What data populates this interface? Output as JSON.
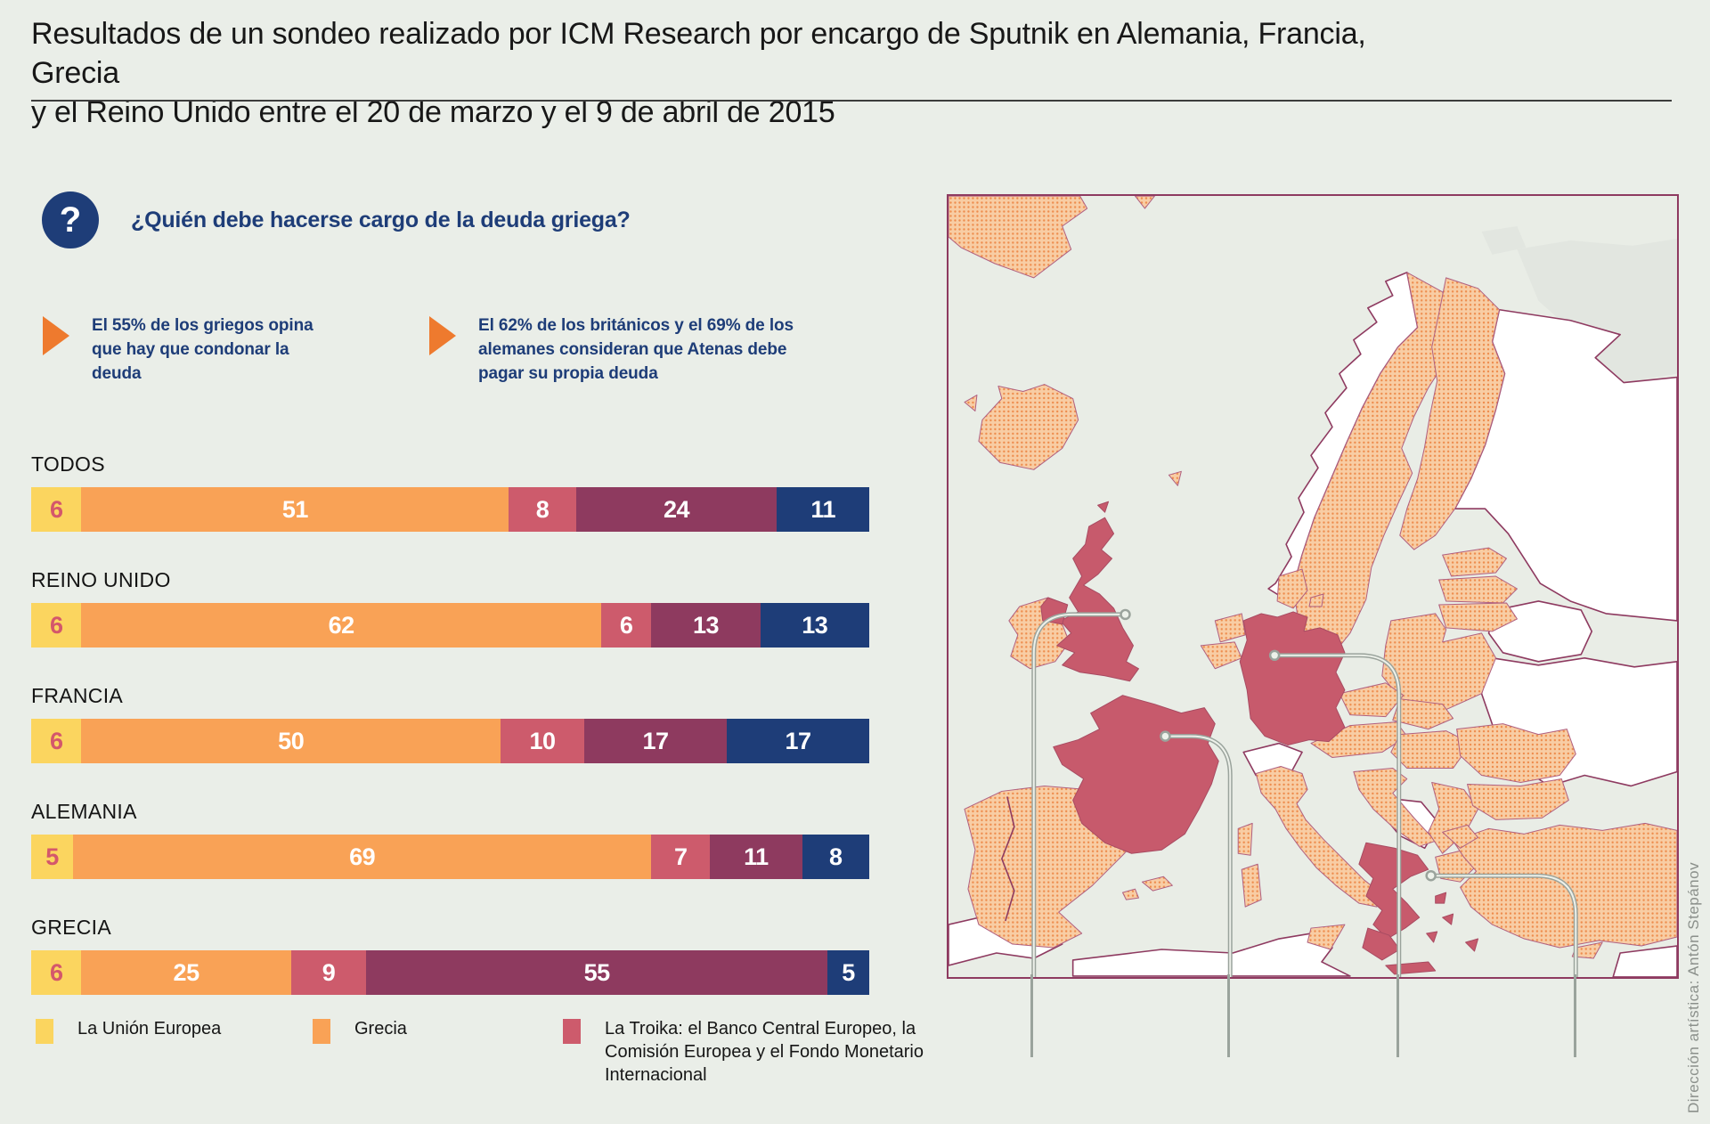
{
  "page": {
    "background": "#eaeee8"
  },
  "header": {
    "title_lines": [
      "Resultados de un sondeo realizado por ICM Research por encargo de Sputnik en Alemania, Francia, Grecia",
      "y el Reino Unido entre el 20 de marzo y el 9 de abril de 2015"
    ]
  },
  "question": {
    "icon_glyph": "?",
    "title": "¿Quién debe hacerse cargo de la deuda griega?"
  },
  "callouts": [
    {
      "text": "El 55% de los griegos opina que hay que condonar la deuda"
    },
    {
      "text": "El 62% de los británicos y el 69% de los alemanes consideran que Atenas debe pagar su propia deuda"
    }
  ],
  "chart_data": {
    "type": "bar",
    "stacked": true,
    "orientation": "horizontal",
    "value_unit": "%",
    "categories": [
      "TODOS",
      "REINO UNIDO",
      "FRANCIA",
      "ALEMANIA",
      "GRECIA"
    ],
    "series": [
      {
        "name": "La Unión Europea",
        "color": "#fbd55f",
        "values": [
          6,
          6,
          6,
          5,
          6
        ]
      },
      {
        "name": "Grecia",
        "color": "#f9a256",
        "values": [
          51,
          62,
          50,
          69,
          25
        ]
      },
      {
        "name": "La Troika: el Banco Central Europeo, la Comisión Europea y el Fondo Monetario Internacional",
        "color": "#cd5b6c",
        "values": [
          8,
          6,
          10,
          7,
          9
        ]
      },
      {
        "name": "",
        "color": "#8e3a5f",
        "values": [
          24,
          13,
          17,
          11,
          55
        ]
      },
      {
        "name": "",
        "color": "#1e3d78",
        "values": [
          11,
          13,
          17,
          8,
          5
        ]
      }
    ],
    "xlim": [
      0,
      100
    ],
    "first_segment_value_color": "#d4576b",
    "value_color": "#ffffff"
  },
  "legend": {
    "items": [
      {
        "label": "La Unión Europea",
        "color": "#fbd55f"
      },
      {
        "label": "Grecia",
        "color": "#f9a256"
      },
      {
        "label": "La Troika: el Banco Central Europeo, la Comisión Europea y el Fondo Monetario Internacional",
        "color": "#cd5b6c"
      }
    ]
  },
  "map": {
    "frame_color": "#8e3a60",
    "sea_color": "#e9ede6",
    "eu_fill_base": "#f8cda4",
    "eu_dot_color": "#ee8c4c",
    "non_eu_fill": "#ffffff",
    "border_color": "#8e3a60",
    "highlight_color": "#c75a6c",
    "highlighted_countries": [
      "Reino Unido",
      "Francia",
      "Alemania",
      "Grecia"
    ],
    "callout_line_color": "#9aa39c"
  },
  "credit": {
    "text": "Dirección artística: Antón Stepánov"
  }
}
